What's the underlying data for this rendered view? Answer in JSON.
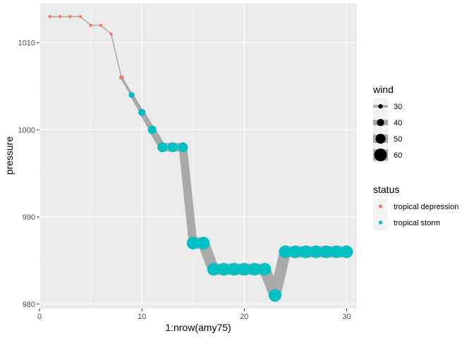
{
  "chart_data": {
    "type": "line",
    "xlabel": "1:nrow(amy75)",
    "ylabel": "pressure",
    "xlim": [
      0,
      31
    ],
    "ylim": [
      979.5,
      1014.5
    ],
    "xticks": [
      0,
      10,
      20,
      30
    ],
    "yticks": [
      980,
      990,
      1000,
      1010
    ],
    "x_minor": [
      5,
      15,
      25
    ],
    "y_minor": [
      985,
      995,
      1005
    ],
    "grid": true,
    "line_color": "#a9a9a9",
    "panel_background": "#ebebeb",
    "points": [
      {
        "x": 1,
        "pressure": 1013,
        "wind": 25,
        "status": "tropical depression"
      },
      {
        "x": 2,
        "pressure": 1013,
        "wind": 25,
        "status": "tropical depression"
      },
      {
        "x": 3,
        "pressure": 1013,
        "wind": 25,
        "status": "tropical depression"
      },
      {
        "x": 4,
        "pressure": 1013,
        "wind": 25,
        "status": "tropical depression"
      },
      {
        "x": 5,
        "pressure": 1012,
        "wind": 25,
        "status": "tropical depression"
      },
      {
        "x": 6,
        "pressure": 1012,
        "wind": 25,
        "status": "tropical depression"
      },
      {
        "x": 7,
        "pressure": 1011,
        "wind": 25,
        "status": "tropical depression"
      },
      {
        "x": 8,
        "pressure": 1006,
        "wind": 30,
        "status": "tropical depression"
      },
      {
        "x": 9,
        "pressure": 1004,
        "wind": 35,
        "status": "tropical storm"
      },
      {
        "x": 10,
        "pressure": 1002,
        "wind": 40,
        "status": "tropical storm"
      },
      {
        "x": 11,
        "pressure": 1000,
        "wind": 45,
        "status": "tropical storm"
      },
      {
        "x": 12,
        "pressure": 998,
        "wind": 50,
        "status": "tropical storm"
      },
      {
        "x": 13,
        "pressure": 998,
        "wind": 50,
        "status": "tropical storm"
      },
      {
        "x": 14,
        "pressure": 998,
        "wind": 50,
        "status": "tropical storm"
      },
      {
        "x": 15,
        "pressure": 987,
        "wind": 60,
        "status": "tropical storm"
      },
      {
        "x": 16,
        "pressure": 987,
        "wind": 60,
        "status": "tropical storm"
      },
      {
        "x": 17,
        "pressure": 984,
        "wind": 60,
        "status": "tropical storm"
      },
      {
        "x": 18,
        "pressure": 984,
        "wind": 60,
        "status": "tropical storm"
      },
      {
        "x": 19,
        "pressure": 984,
        "wind": 60,
        "status": "tropical storm"
      },
      {
        "x": 20,
        "pressure": 984,
        "wind": 60,
        "status": "tropical storm"
      },
      {
        "x": 21,
        "pressure": 984,
        "wind": 60,
        "status": "tropical storm"
      },
      {
        "x": 22,
        "pressure": 984,
        "wind": 60,
        "status": "tropical storm"
      },
      {
        "x": 23,
        "pressure": 981,
        "wind": 60,
        "status": "tropical storm"
      },
      {
        "x": 24,
        "pressure": 986,
        "wind": 60,
        "status": "tropical storm"
      },
      {
        "x": 25,
        "pressure": 986,
        "wind": 60,
        "status": "tropical storm"
      },
      {
        "x": 26,
        "pressure": 986,
        "wind": 60,
        "status": "tropical storm"
      },
      {
        "x": 27,
        "pressure": 986,
        "wind": 60,
        "status": "tropical storm"
      },
      {
        "x": 28,
        "pressure": 986,
        "wind": 60,
        "status": "tropical storm"
      },
      {
        "x": 29,
        "pressure": 986,
        "wind": 60,
        "status": "tropical storm"
      },
      {
        "x": 30,
        "pressure": 986,
        "wind": 60,
        "status": "tropical storm"
      }
    ],
    "legend": {
      "position": "right",
      "wind": {
        "title": "wind",
        "entries": [
          {
            "label": "30",
            "value": 30
          },
          {
            "label": "40",
            "value": 40
          },
          {
            "label": "50",
            "value": 50
          },
          {
            "label": "60",
            "value": 60
          }
        ]
      },
      "status": {
        "title": "status",
        "entries": [
          {
            "label": "tropical depression",
            "color": "#f8766d"
          },
          {
            "label": "tropical storm",
            "color": "#00bfc4"
          }
        ]
      }
    }
  }
}
